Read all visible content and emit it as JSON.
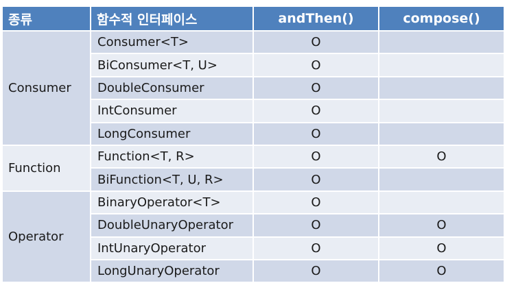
{
  "header": {
    "kind": "종류",
    "interface": "함수적 인터페이스",
    "and_then": "andThen()",
    "compose": "compose()"
  },
  "groups": [
    {
      "kind": "Consumer",
      "rows": [
        {
          "interface": "Consumer<T>",
          "and_then": "O",
          "compose": ""
        },
        {
          "interface": "BiConsumer<T, U>",
          "and_then": "O",
          "compose": ""
        },
        {
          "interface": "DoubleConsumer",
          "and_then": "O",
          "compose": ""
        },
        {
          "interface": "IntConsumer",
          "and_then": "O",
          "compose": ""
        },
        {
          "interface": "LongConsumer",
          "and_then": "O",
          "compose": ""
        }
      ]
    },
    {
      "kind": "Function",
      "rows": [
        {
          "interface": "Function<T, R>",
          "and_then": "O",
          "compose": "O"
        },
        {
          "interface": "BiFunction<T, U, R>",
          "and_then": "O",
          "compose": ""
        }
      ]
    },
    {
      "kind": "Operator",
      "rows": [
        {
          "interface": "BinaryOperator<T>",
          "and_then": "O",
          "compose": ""
        },
        {
          "interface": "DoubleUnaryOperator",
          "and_then": "O",
          "compose": "O"
        },
        {
          "interface": "IntUnaryOperator",
          "and_then": "O",
          "compose": "O"
        },
        {
          "interface": "LongUnaryOperator",
          "and_then": "O",
          "compose": "O"
        }
      ]
    }
  ],
  "colors": {
    "header_bg": "#4f81bd",
    "row_dark": "#d0d8e8",
    "row_light": "#e9edf4"
  }
}
